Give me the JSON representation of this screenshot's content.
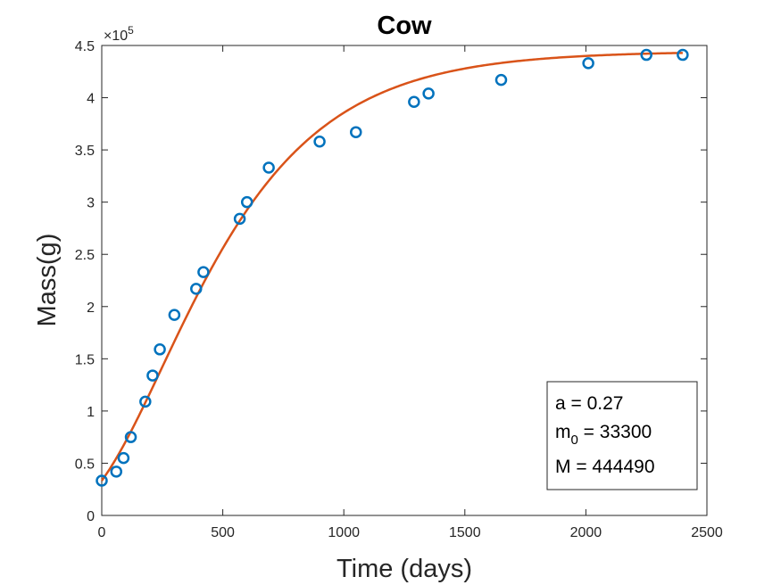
{
  "chart_data": {
    "type": "scatter",
    "title": "Cow",
    "xlabel": "Time (days)",
    "ylabel": "Mass(g)",
    "xlim": [
      0,
      2500
    ],
    "ylim": [
      0,
      450000
    ],
    "x_ticks": [
      0,
      500,
      1000,
      1500,
      2000,
      2500
    ],
    "x_tick_labels": [
      "0",
      "500",
      "1000",
      "1500",
      "2000",
      "2500"
    ],
    "y_ticks": [
      0,
      50000,
      100000,
      150000,
      200000,
      250000,
      300000,
      350000,
      400000,
      450000
    ],
    "y_tick_labels": [
      "0",
      "0.5",
      "1",
      "1.5",
      "2",
      "2.5",
      "3",
      "3.5",
      "4",
      "4.5"
    ],
    "y_exponent_base": "×10",
    "y_exponent_power": "5",
    "grid": false,
    "series": [
      {
        "kind": "scatter",
        "marker": "circle-open",
        "color": "#0072BD",
        "x": [
          0,
          60,
          90,
          120,
          180,
          210,
          240,
          300,
          390,
          420,
          570,
          600,
          690,
          900,
          1050,
          1290,
          1350,
          1650,
          2010,
          2250,
          2400
        ],
        "y": [
          33300,
          42000,
          55000,
          75000,
          109000,
          134000,
          159000,
          192000,
          217000,
          233000,
          284000,
          300000,
          333000,
          358000,
          367000,
          396000,
          404000,
          417000,
          433000,
          441000,
          441000
        ]
      },
      {
        "kind": "line",
        "color": "#D95319",
        "model": "Gompertz-type growth: M * (1 - (1 - (m0/M)^(1/4)) * exp(-a t / (4 M^(1/4))))^4",
        "params": {
          "a": 0.27,
          "m0": 33300,
          "M": 444490
        }
      }
    ],
    "annotation": {
      "placement": "bottom-right",
      "lines": [
        {
          "label": "a = 0.27"
        },
        {
          "base": "m",
          "sub": "0",
          "rest": " = 33300"
        },
        {
          "label": "M = 444490"
        }
      ]
    }
  }
}
